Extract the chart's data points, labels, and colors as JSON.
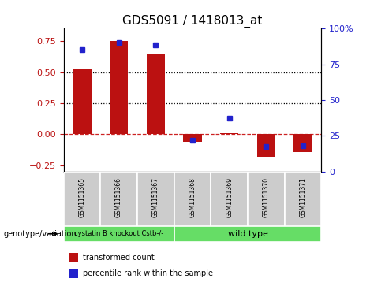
{
  "title": "GDS5091 / 1418013_at",
  "samples": [
    "GSM1151365",
    "GSM1151366",
    "GSM1151367",
    "GSM1151368",
    "GSM1151369",
    "GSM1151370",
    "GSM1151371"
  ],
  "transformed_count": [
    0.52,
    0.75,
    0.65,
    -0.06,
    0.01,
    -0.18,
    -0.14
  ],
  "percentile_rank_raw": [
    93,
    99,
    97,
    20,
    38,
    15,
    16
  ],
  "bar_color": "#bb1111",
  "dot_color": "#2222cc",
  "hline_color": "#cc2222",
  "dotline_color": "#000000",
  "ylim": [
    -0.3,
    0.85
  ],
  "y2lim": [
    0,
    100
  ],
  "yticks": [
    -0.25,
    0,
    0.25,
    0.5,
    0.75
  ],
  "y2ticks": [
    0,
    25,
    50,
    75,
    100
  ],
  "dotted_lines": [
    0.5,
    0.25
  ],
  "group1_samples": 3,
  "group1_label": "cystatin B knockout Cstb-/-",
  "group2_label": "wild type",
  "group_color": "#66dd66",
  "sample_box_color": "#cccccc",
  "genotype_label": "genotype/variation",
  "legend_bar_label": "transformed count",
  "legend_dot_label": "percentile rank within the sample",
  "bar_width": 0.5,
  "tick_fontsize": 8,
  "title_fontsize": 11,
  "sample_fontsize": 5.5,
  "legend_fontsize": 7,
  "genotype_fontsize": 7,
  "group_label_fontsize1": 6,
  "group_label_fontsize2": 8
}
